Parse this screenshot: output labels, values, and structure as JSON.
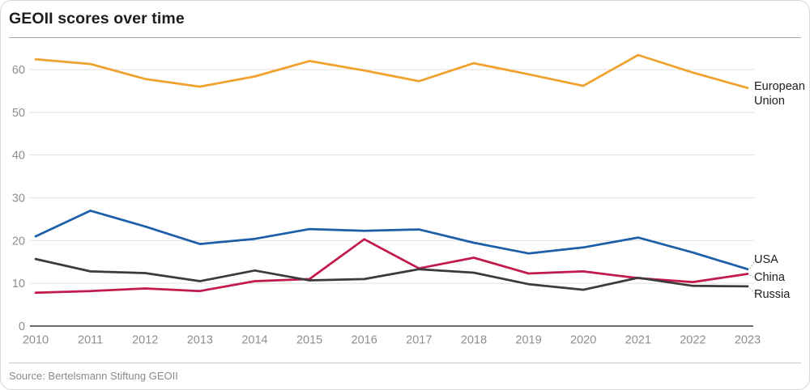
{
  "header": {
    "title": "GEOII scores over time"
  },
  "footer": {
    "source": "Source: Bertelsmann Stiftung GEOII"
  },
  "colors": {
    "european_union": "#F0A22E",
    "usa": "#1D5FA9",
    "china": "#C11A4B",
    "russia": "#3B3B3B",
    "gridline": "#e0e0e0",
    "axis": "#3a3a3a",
    "tick_label": "#8e8e8e",
    "series_label": "#1d1d1d",
    "leader": "#9a9a9a"
  },
  "chart_data": {
    "type": "line",
    "x": [
      2010,
      2011,
      2012,
      2013,
      2014,
      2015,
      2016,
      2017,
      2018,
      2019,
      2020,
      2021,
      2022,
      2023
    ],
    "series": [
      {
        "name": "European Union",
        "label_lines": [
          "European",
          "Union"
        ],
        "color": "#F0A22E",
        "values": [
          62.4,
          61.3,
          57.8,
          56.0,
          58.4,
          62.0,
          59.8,
          57.3,
          61.5,
          58.9,
          56.2,
          63.4,
          59.3,
          55.7
        ]
      },
      {
        "name": "USA",
        "label_lines": [
          "USA"
        ],
        "color": "#1D5FA9",
        "values": [
          21.0,
          27.0,
          23.3,
          19.2,
          20.4,
          22.7,
          22.3,
          22.6,
          19.5,
          17.0,
          18.4,
          20.7,
          17.2,
          13.3
        ]
      },
      {
        "name": "China",
        "label_lines": [
          "China"
        ],
        "color": "#C11A4B",
        "values": [
          7.8,
          8.2,
          8.8,
          8.2,
          10.5,
          11.0,
          20.3,
          13.5,
          16.0,
          12.3,
          12.8,
          11.2,
          10.3,
          12.2
        ]
      },
      {
        "name": "Russia",
        "label_lines": [
          "Russia"
        ],
        "color": "#3B3B3B",
        "values": [
          15.7,
          12.8,
          12.4,
          10.5,
          13.0,
          10.7,
          11.0,
          13.3,
          12.5,
          9.8,
          8.5,
          11.3,
          9.4,
          9.3
        ]
      }
    ],
    "yticks": [
      0,
      10,
      20,
      30,
      40,
      50,
      60
    ],
    "ylim": [
      0,
      65
    ],
    "grid": "horizontal",
    "legend_position": "right-of-line-end",
    "title": "GEOII scores over time",
    "xlabel": "",
    "ylabel": ""
  }
}
